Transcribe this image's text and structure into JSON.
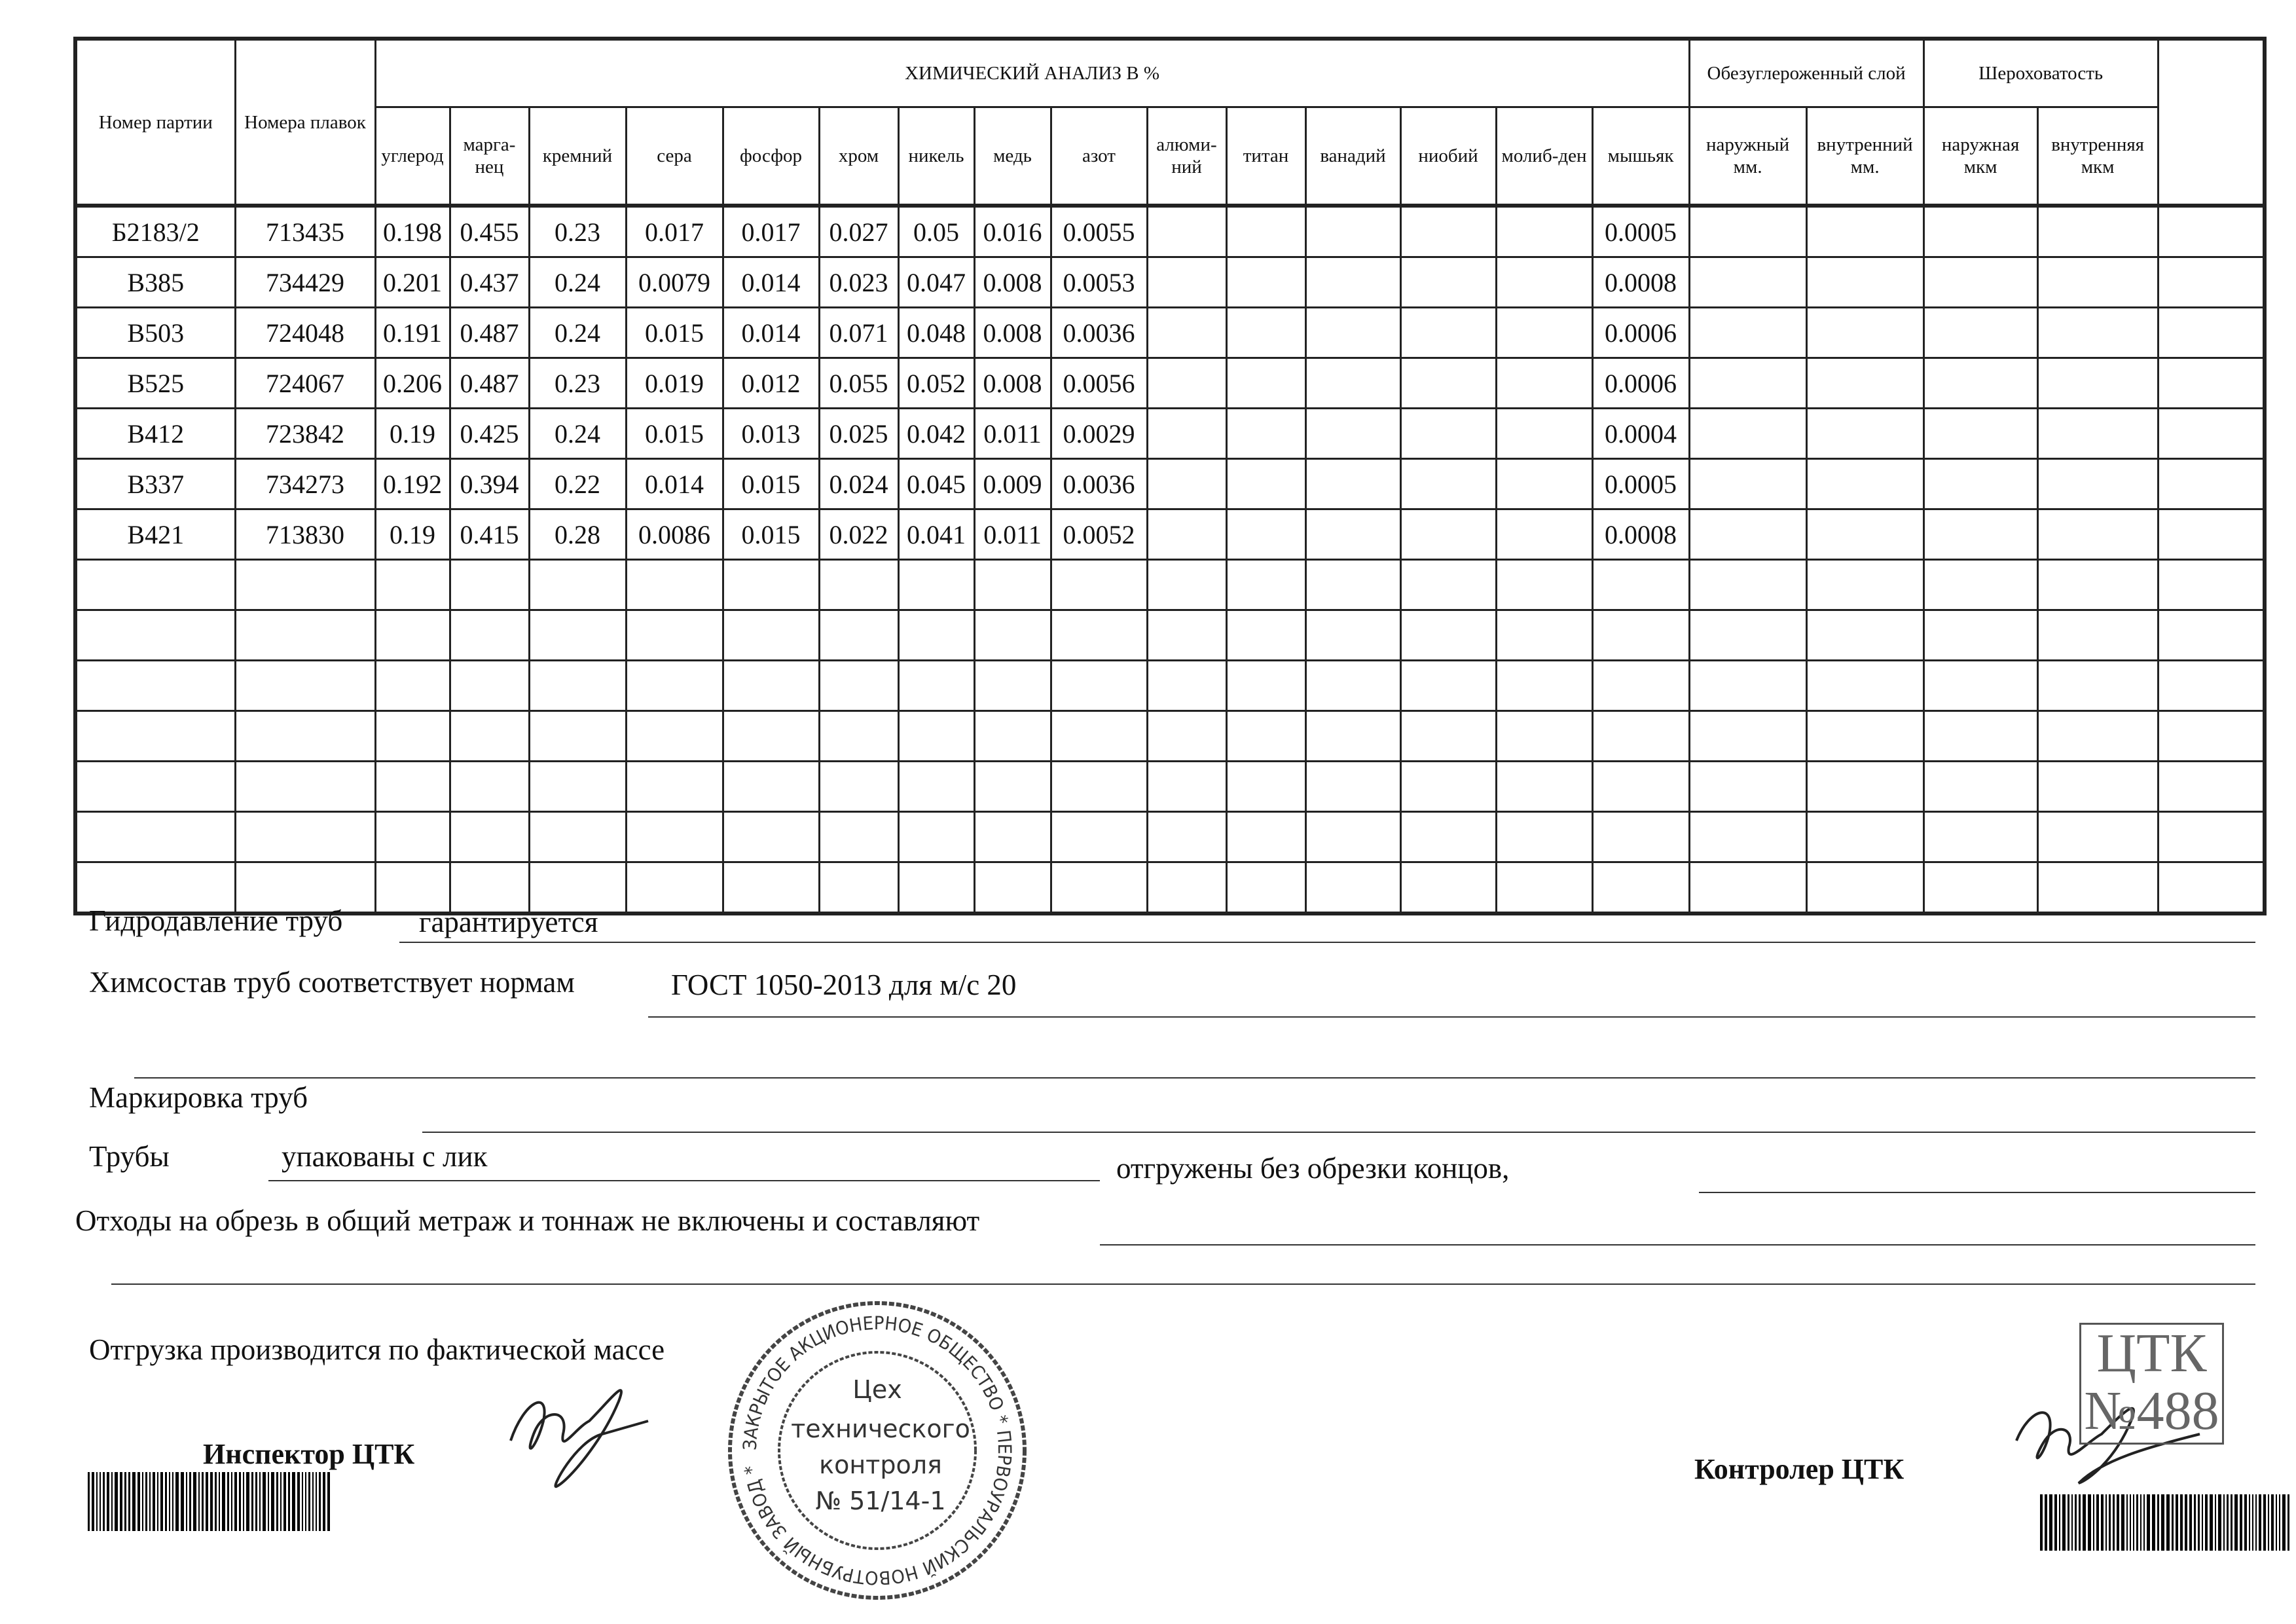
{
  "table": {
    "col_party": "Номер партии",
    "col_heats": "Номера плавок",
    "chem_title": "ХИМИЧЕСКИЙ АНАЛИЗ  В   %",
    "decarb_title": "Обезуглероженный слой",
    "rough_title": "Шероховатость",
    "chem_columns": [
      "углерод",
      "марга-нец",
      "кремний",
      "сера",
      "фосфор",
      "хром",
      "никель",
      "медь",
      "азот",
      "алюми-ний",
      "титан",
      "ванадий",
      "ниобий",
      "молиб-ден",
      "мышьяк"
    ],
    "decarb_columns": [
      "наружный мм.",
      "внутренний мм."
    ],
    "rough_columns": [
      "наружная мкм",
      "внутренняя мкм"
    ],
    "rows": [
      [
        "Б2183/2",
        "713435",
        "0.198",
        "0.455",
        "0.23",
        "0.017",
        "0.017",
        "0.027",
        "0.05",
        "0.016",
        "0.0055",
        "",
        "",
        "",
        "",
        "",
        "0.0005",
        "",
        "",
        "",
        ""
      ],
      [
        "В385",
        "734429",
        "0.201",
        "0.437",
        "0.24",
        "0.0079",
        "0.014",
        "0.023",
        "0.047",
        "0.008",
        "0.0053",
        "",
        "",
        "",
        "",
        "",
        "0.0008",
        "",
        "",
        "",
        ""
      ],
      [
        "В503",
        "724048",
        "0.191",
        "0.487",
        "0.24",
        "0.015",
        "0.014",
        "0.071",
        "0.048",
        "0.008",
        "0.0036",
        "",
        "",
        "",
        "",
        "",
        "0.0006",
        "",
        "",
        "",
        ""
      ],
      [
        "В525",
        "724067",
        "0.206",
        "0.487",
        "0.23",
        "0.019",
        "0.012",
        "0.055",
        "0.052",
        "0.008",
        "0.0056",
        "",
        "",
        "",
        "",
        "",
        "0.0006",
        "",
        "",
        "",
        ""
      ],
      [
        "В412",
        "723842",
        "0.19",
        "0.425",
        "0.24",
        "0.015",
        "0.013",
        "0.025",
        "0.042",
        "0.011",
        "0.0029",
        "",
        "",
        "",
        "",
        "",
        "0.0004",
        "",
        "",
        "",
        ""
      ],
      [
        "В337",
        "734273",
        "0.192",
        "0.394",
        "0.22",
        "0.014",
        "0.015",
        "0.024",
        "0.045",
        "0.009",
        "0.0036",
        "",
        "",
        "",
        "",
        "",
        "0.0005",
        "",
        "",
        "",
        ""
      ],
      [
        "В421",
        "713830",
        "0.19",
        "0.415",
        "0.28",
        "0.0086",
        "0.015",
        "0.022",
        "0.041",
        "0.011",
        "0.0052",
        "",
        "",
        "",
        "",
        "",
        "0.0008",
        "",
        "",
        "",
        ""
      ]
    ],
    "empty_rows": 7
  },
  "form": {
    "hydro_label": "Гидродавление труб",
    "hydro_value": "гарантируется",
    "chem_label": "Химсостав труб соответствует нормам",
    "chem_value": "ГОСТ 1050-2013 для м/с 20",
    "marking_label": "Маркировка труб",
    "pipes_label": "Трубы",
    "pipes_value": "упакованы с лик",
    "pipes_suffix": "отгружены без обрезки концов,",
    "waste_label": "Отходы на обрезь в общий метраж и тоннаж не включены и составляют",
    "shipment_label": "Отгрузка производится по фактической массе"
  },
  "signatures": {
    "inspector_label": "Инспектор ЦТК",
    "controller_label": "Контролер ЦТК"
  },
  "stamp": {
    "ring_text": "ЗАКРЫТОЕ АКЦИОНЕРНОЕ ОБЩЕСТВО * ПЕРВОУРАЛЬСКИЙ НОВОТРУБНЫЙ ЗАВОД *",
    "center_lines": [
      "Цех",
      "технического",
      "контроля",
      "№ 51/14-1"
    ],
    "ctk_text": "ЦТК",
    "ctk_number": "№488"
  }
}
